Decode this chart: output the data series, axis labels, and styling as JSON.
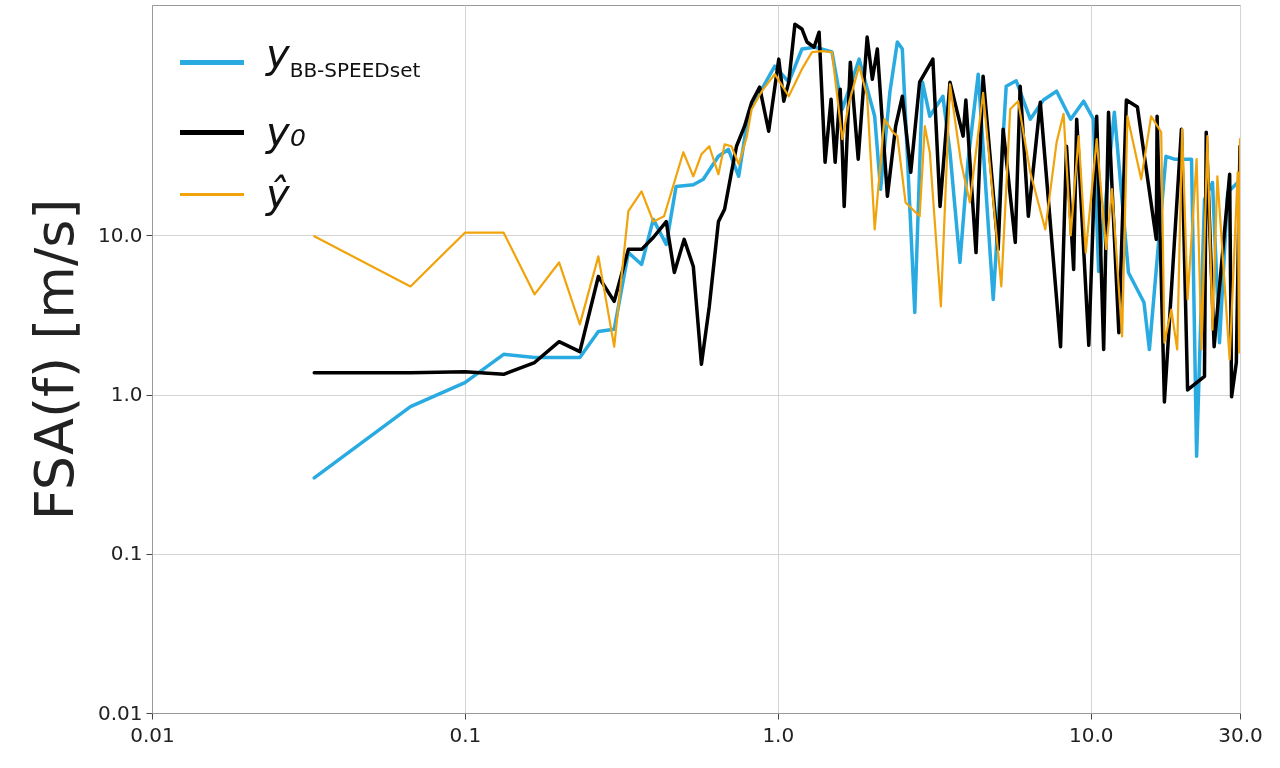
{
  "chart_data": {
    "type": "line",
    "ylabel": "FSA(f) [m/s]",
    "log": "xy",
    "grid": true,
    "legend": "top left",
    "xlim": [
      0.01,
      30
    ],
    "ylim": [
      0.01,
      280
    ],
    "xticks": [
      0.01,
      0.1,
      {
        "value": 1,
        "label": "1.0"
      },
      {
        "value": 10,
        "label": "10.0"
      },
      {
        "value": 30,
        "label": "30.0"
      }
    ],
    "yticks": [
      0.01,
      0.1,
      {
        "value": 1,
        "label": "1.0"
      },
      {
        "value": 10,
        "label": "10.0"
      }
    ],
    "series": [
      {
        "name": "y$_{BB-SPEEDset}$",
        "color": "#29abe2",
        "x": [
          0.033,
          0.067,
          0.1,
          0.133,
          0.167,
          0.2,
          0.233,
          0.267,
          0.3,
          0.333,
          0.367,
          0.4,
          0.44,
          0.473,
          0.537,
          0.578,
          0.646,
          0.695,
          0.75,
          0.807,
          0.875,
          0.978,
          1.084,
          1.194,
          1.316,
          1.49,
          1.607,
          1.82,
          2.04,
          2.13,
          2.28,
          2.41,
          2.5,
          2.74,
          2.9,
          3.06,
          3.37,
          3.55,
          3.82,
          4.05,
          4.37,
          4.88,
          5.37,
          5.78,
          6.41,
          7.06,
          7.78,
          8.63,
          9.49,
          10.2,
          10.6,
          11.9,
          13.2,
          14.8,
          15.4,
          17.4,
          18.5,
          21.0,
          21.8,
          23.1,
          24.5,
          25.8,
          27.4,
          29.5
        ],
        "values": [
          0.3,
          0.84,
          1.19,
          1.79,
          1.71,
          1.71,
          1.71,
          2.49,
          2.57,
          7.8,
          6.57,
          12.6,
          8.78,
          20.3,
          20.8,
          22.5,
          31.4,
          34.7,
          23.5,
          59.4,
          78.6,
          115.6,
          91.7,
          148,
          152,
          142,
          62,
          128,
          56,
          19.5,
          78.6,
          164,
          148,
          3.28,
          91.7,
          56,
          74.8,
          33.3,
          6.76,
          28.8,
          103,
          3.96,
          86.5,
          93.6,
          53.7,
          70.8,
          80.5,
          53.7,
          69.7,
          53.7,
          5.94,
          59.4,
          5.85,
          3.79,
          1.92,
          31.4,
          30.1,
          30.1,
          0.41,
          16.8,
          21.5,
          2.12,
          18.6,
          21.5
        ]
      },
      {
        "name": "y₀",
        "color": "#000000",
        "x": [
          0.033,
          0.067,
          0.1,
          0.133,
          0.167,
          0.2,
          0.233,
          0.267,
          0.3,
          0.333,
          0.367,
          0.4,
          0.44,
          0.467,
          0.502,
          0.537,
          0.57,
          0.604,
          0.646,
          0.676,
          0.711,
          0.738,
          0.783,
          0.825,
          0.875,
          0.935,
          1.007,
          1.045,
          1.084,
          1.134,
          1.194,
          1.239,
          1.306,
          1.355,
          1.416,
          1.48,
          1.525,
          1.583,
          1.63,
          1.705,
          1.807,
          1.93,
          2.005,
          2.08,
          2.24,
          2.38,
          2.5,
          2.66,
          2.84,
          3.13,
          3.3,
          3.55,
          3.91,
          3.99,
          4.3,
          4.53,
          5.06,
          5.25,
          5.74,
          5.95,
          6.32,
          6.9,
          8.01,
          8.37,
          8.82,
          9.02,
          9.86,
          10.45,
          11.0,
          11.4,
          12.3,
          13.0,
          14.1,
          16.2,
          16.3,
          17.2,
          19.5,
          20.4,
          23.1,
          23.4,
          24.8,
          27.8,
          28.2,
          29.2,
          30
        ],
        "values": [
          1.37,
          1.37,
          1.39,
          1.34,
          1.59,
          2.15,
          1.86,
          5.52,
          3.85,
          8.17,
          8.17,
          9.7,
          12.2,
          5.85,
          9.44,
          6.38,
          1.55,
          3.58,
          12.2,
          14.6,
          24.9,
          36.3,
          48.5,
          68.6,
          85.3,
          45.1,
          128,
          69.7,
          91.7,
          212,
          198,
          164,
          152,
          189,
          28.8,
          71.6,
          28.8,
          82.8,
          15.2,
          122.5,
          30.1,
          176,
          95.7,
          148,
          17.6,
          48.5,
          74.8,
          24.9,
          91.7,
          128,
          15.2,
          91.7,
          42,
          70.8,
          7.8,
          100,
          8.17,
          46.5,
          9.04,
          86.5,
          13.2,
          68.6,
          2.0,
          36.3,
          6.11,
          53.7,
          2.04,
          56,
          1.92,
          59.4,
          2.45,
          70.8,
          64,
          9.44,
          56,
          0.9,
          46.5,
          1.07,
          1.3,
          44.5,
          2.0,
          24.2,
          0.97,
          1.59,
          36.3
        ]
      },
      {
        "name": "ŷ",
        "color": "#f0a30a",
        "x": [
          0.033,
          0.067,
          0.1,
          0.133,
          0.167,
          0.2,
          0.233,
          0.267,
          0.3,
          0.333,
          0.367,
          0.4,
          0.433,
          0.499,
          0.537,
          0.57,
          0.604,
          0.646,
          0.676,
          0.711,
          0.75,
          0.795,
          0.825,
          0.889,
          0.978,
          1.084,
          1.194,
          1.286,
          1.385,
          1.49,
          1.607,
          1.69,
          1.82,
          1.93,
          2.04,
          2.19,
          2.33,
          2.41,
          2.56,
          2.84,
          2.95,
          3.06,
          3.32,
          3.55,
          3.85,
          4.11,
          4.53,
          5.18,
          5.53,
          5.86,
          6.41,
          7.16,
          7.78,
          8.19,
          8.63,
          9.15,
          9.64,
          10.45,
          11.2,
          11.7,
          12.6,
          13.1,
          14.5,
          15.6,
          16.8,
          17.2,
          18.1,
          18.9,
          19.6,
          20.4,
          21.8,
          22.6,
          23.6,
          24.5,
          25.4,
          27.8,
          29.5,
          29.8,
          30
        ],
        "values": [
          9.87,
          4.78,
          10.4,
          10.4,
          4.26,
          6.76,
          2.76,
          7.38,
          2.0,
          14.2,
          18.9,
          12.2,
          13.2,
          33.3,
          23.5,
          32.3,
          36.3,
          24.2,
          37.3,
          36.3,
          28,
          41.3,
          62,
          80.5,
          103,
          74.8,
          110.7,
          141.6,
          143.6,
          141.6,
          40.2,
          68.6,
          115.6,
          74.8,
          10.9,
          53.7,
          44.5,
          42,
          16.1,
          13.2,
          48.5,
          33.3,
          3.58,
          89,
          28.8,
          16.1,
          78.6,
          4.78,
          62,
          69.7,
          24.9,
          10.9,
          38.4,
          58,
          10,
          42,
          7.8,
          40.2,
          8.2,
          19.5,
          2.32,
          56,
          22.5,
          56,
          44.5,
          2.12,
          3.42,
          1.92,
          46.5,
          3.96,
          30.1,
          1.92,
          42,
          2.56,
          23.5,
          1.66,
          24.9,
          1.84,
          40.2
        ]
      }
    ]
  }
}
